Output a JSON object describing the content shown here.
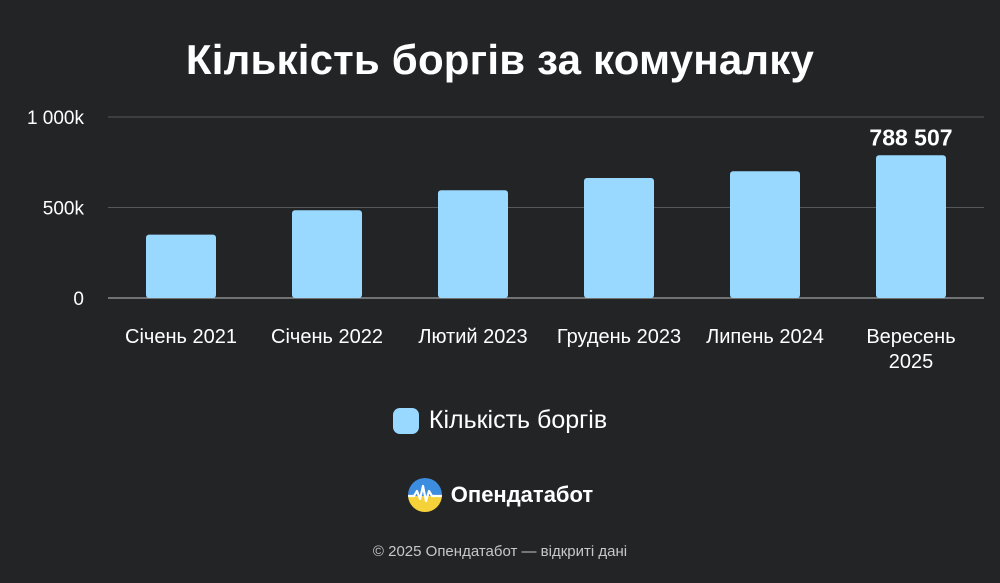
{
  "chart_data": {
    "type": "bar",
    "title": "Кількість боргів за комуналку",
    "categories": [
      "Січень 2021",
      "Січень 2022",
      "Лютий 2023",
      "Грудень 2023",
      "Липень 2024",
      "Вересень 2025"
    ],
    "series": [
      {
        "name": "Кількість боргів",
        "values": [
          350000,
          485000,
          595000,
          663000,
          700000,
          788507
        ]
      }
    ],
    "data_labels": [
      null,
      null,
      null,
      null,
      null,
      "788 507"
    ],
    "y_ticks": [
      {
        "value": 0,
        "label": "0"
      },
      {
        "value": 500000,
        "label": "500k"
      },
      {
        "value": 1000000,
        "label": "1 000k"
      }
    ],
    "ylim": [
      0,
      1000000
    ],
    "grid": true,
    "legend_position": "bottom",
    "bar_color": "#99d8ff"
  },
  "brand": {
    "name": "Опендатабот",
    "logo_icon": "opendatabot-logo-icon"
  },
  "footer": {
    "text": "© 2025 Опендатабот — відкриті дані"
  }
}
